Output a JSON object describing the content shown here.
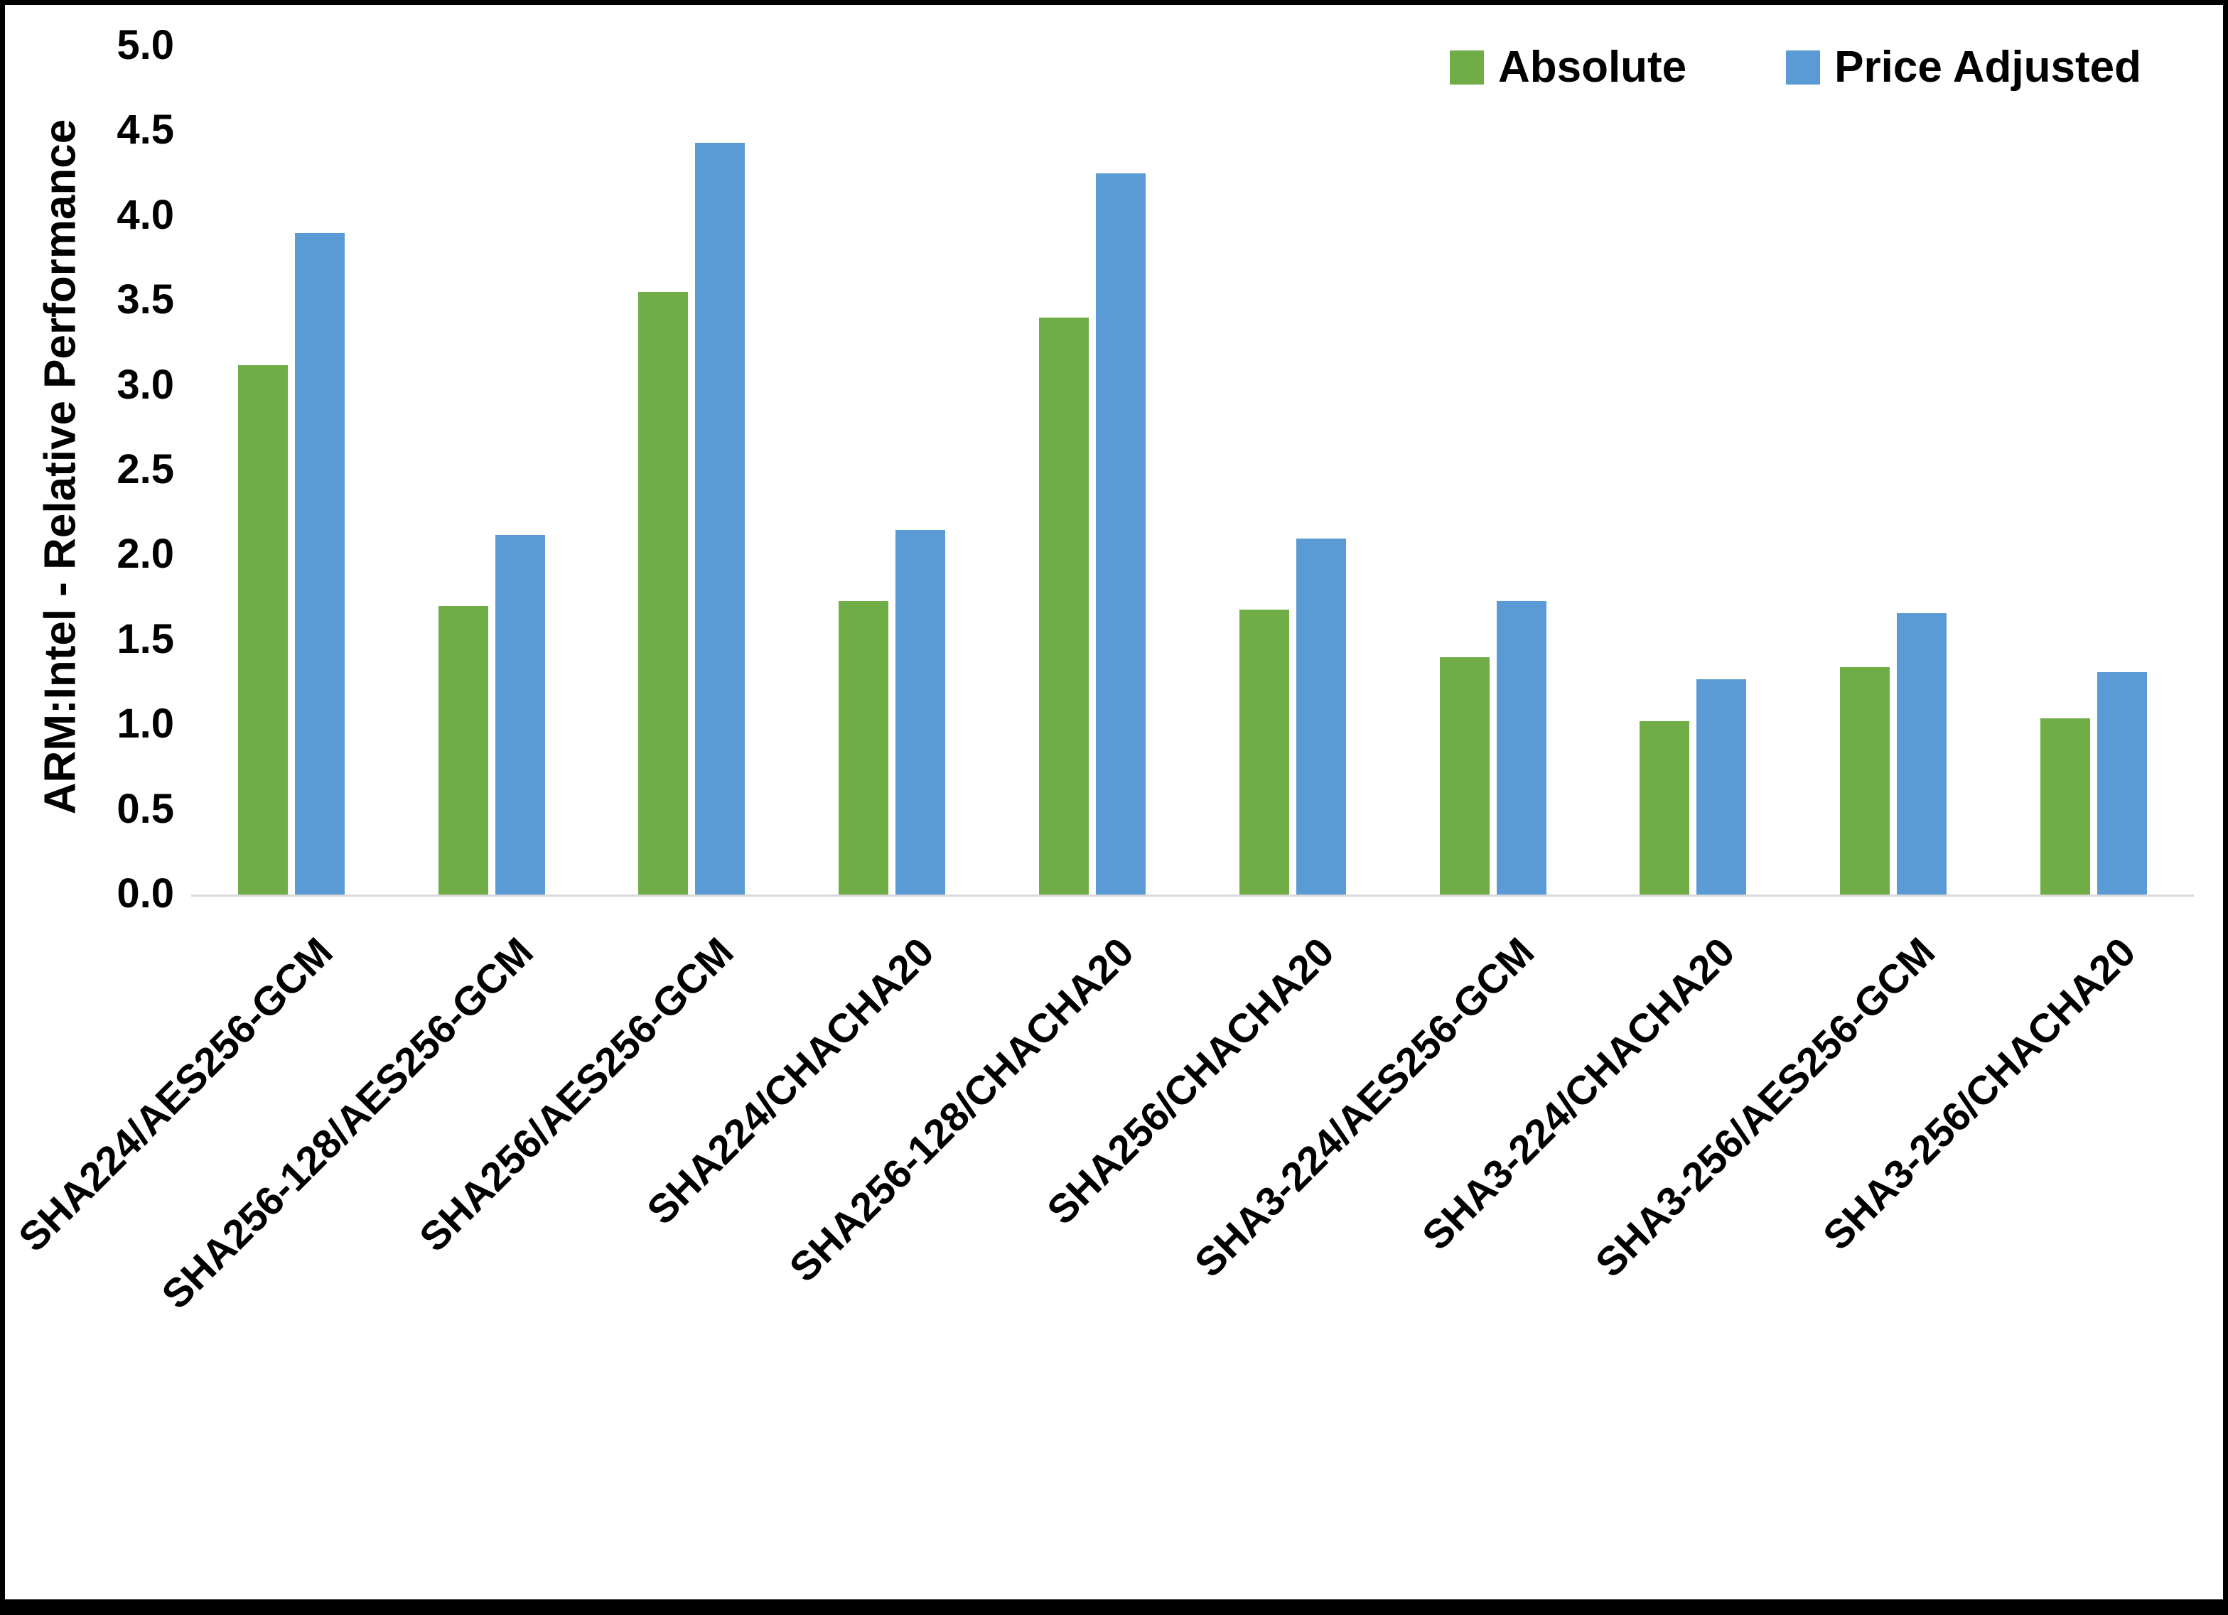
{
  "chart_data": {
    "type": "bar",
    "title": "",
    "xlabel": "",
    "ylabel": "ARM:Intel - Relative Performance",
    "ylim": [
      0,
      5
    ],
    "ytick_step": 0.5,
    "y_ticks": [
      "5.0",
      "4.5",
      "4.0",
      "3.5",
      "3.0",
      "2.5",
      "2.0",
      "1.5",
      "1.0",
      "0.5",
      "0.0"
    ],
    "grid": false,
    "legend_position": "top-right",
    "categories": [
      "SHA224/AES256-GCM",
      "SHA256-128/AES256-GCM",
      "SHA256/AES256-GCM",
      "SHA224/CHACHA20",
      "SHA256-128/CHACHA20",
      "SHA256/CHACHA20",
      "SHA3-224/AES256-GCM",
      "SHA3-224/CHACHA20",
      "SHA3-256/AES256-GCM",
      "SHA3-256/CHACHA20"
    ],
    "series": [
      {
        "name": "Absolute",
        "color": "#70AD47",
        "values": [
          3.12,
          1.7,
          3.55,
          1.73,
          3.4,
          1.68,
          1.4,
          1.02,
          1.34,
          1.04
        ]
      },
      {
        "name": "Price Adjusted",
        "color": "#5B9BD5",
        "values": [
          3.9,
          2.12,
          4.43,
          2.15,
          4.25,
          2.1,
          1.73,
          1.27,
          1.66,
          1.31
        ]
      }
    ]
  },
  "colors": {
    "axis_line": "#d9d9d9",
    "text": "#000000",
    "frame_border": "#000000",
    "background": "#ffffff"
  }
}
